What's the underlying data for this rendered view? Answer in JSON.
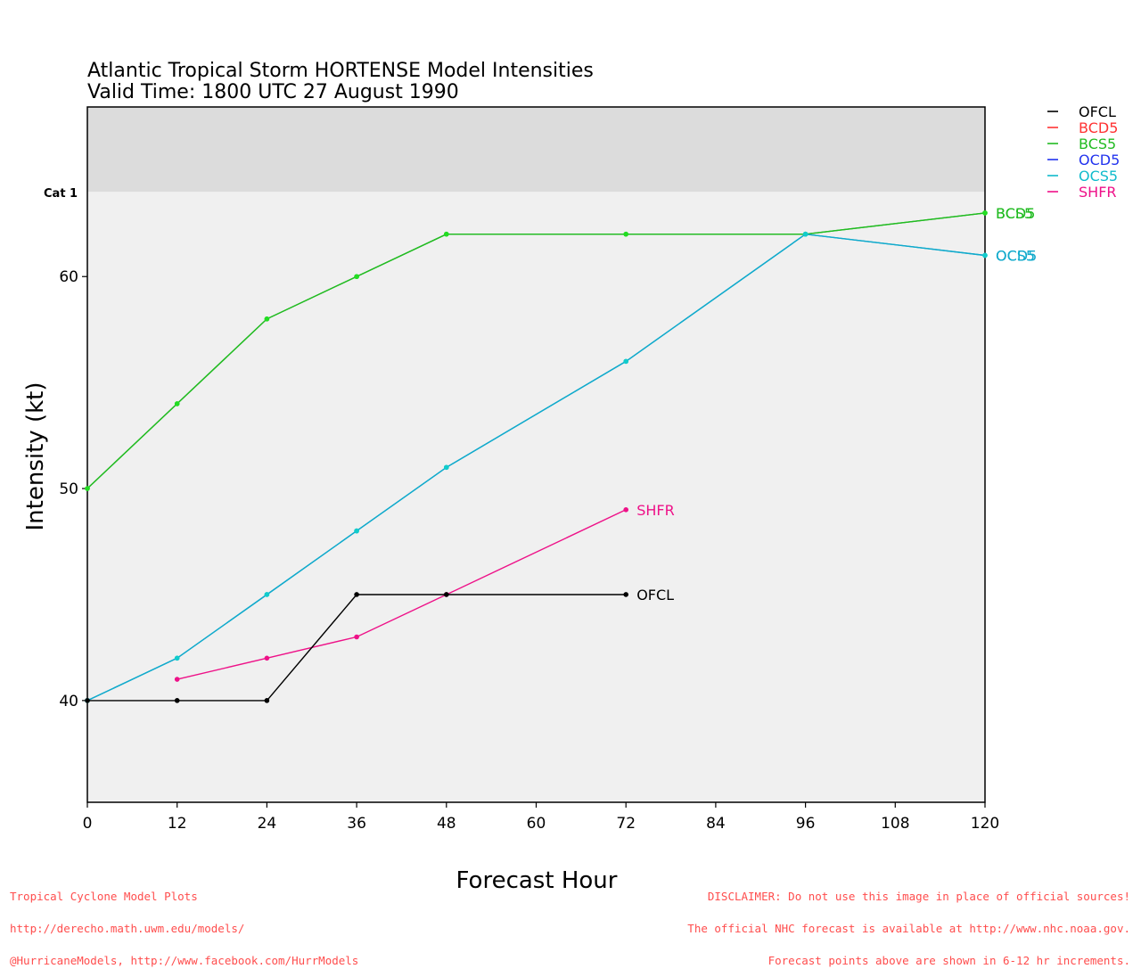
{
  "chart_data": {
    "type": "line",
    "title": "Atlantic Tropical Storm HORTENSE Model Intensities",
    "subtitle": "Valid Time: 1800 UTC 27 August 1990",
    "xlabel": "Forecast Hour",
    "ylabel": "Intensity (kt)",
    "xlim": [
      0,
      120
    ],
    "ylim": [
      35.2,
      68
    ],
    "x_ticks": [
      0,
      12,
      24,
      36,
      48,
      60,
      72,
      84,
      96,
      108,
      120
    ],
    "y_ticks": [
      40,
      50,
      60
    ],
    "thresholds": [
      {
        "label": "Cat 1",
        "value": 64,
        "shade_color": "#dcdcdc"
      }
    ],
    "plot_background": "#f0f0f0",
    "legend_position": "top-right-outside",
    "legend": [
      {
        "name": "OFCL",
        "color": "#000000"
      },
      {
        "name": "BCD5",
        "color": "#ff3333"
      },
      {
        "name": "BCS5",
        "color": "#22bb22"
      },
      {
        "name": "OCD5",
        "color": "#2233ee"
      },
      {
        "name": "OCS5",
        "color": "#11bbcc"
      },
      {
        "name": "SHFR",
        "color": "#ee1188"
      }
    ],
    "series": [
      {
        "name": "BCS5",
        "color": "#22bb22",
        "point_color": "#22dd22",
        "x": [
          0,
          12,
          24,
          36,
          48,
          72,
          96,
          120
        ],
        "y": [
          50,
          54,
          58,
          60,
          62,
          62,
          62,
          63
        ]
      },
      {
        "name": "BCD5",
        "color": "#22bb22",
        "point_color": "#22dd22",
        "x": [
          0,
          12,
          24,
          36,
          48,
          72,
          96,
          120
        ],
        "y": [
          50,
          54,
          58,
          60,
          62,
          62,
          62,
          63
        ]
      },
      {
        "name": "OCD5",
        "color": "#11aacc",
        "point_color": "#11cccc",
        "x": [
          0,
          12,
          24,
          36,
          48,
          72,
          96,
          120
        ],
        "y": [
          40,
          42,
          45,
          48,
          51,
          56,
          62,
          61
        ]
      },
      {
        "name": "OCS5",
        "color": "#11aacc",
        "point_color": "#11cccc",
        "x": [
          0,
          12,
          24,
          36,
          48,
          72,
          96,
          120
        ],
        "y": [
          40,
          42,
          45,
          48,
          51,
          56,
          62,
          61
        ]
      },
      {
        "name": "SHFR",
        "color": "#ee1188",
        "point_color": "#ee1188",
        "x": [
          12,
          24,
          36,
          48,
          72
        ],
        "y": [
          41,
          42,
          43,
          45,
          49
        ]
      },
      {
        "name": "OFCL",
        "color": "#000000",
        "point_color": "#000000",
        "x": [
          0,
          12,
          24,
          36,
          48,
          72
        ],
        "y": [
          40,
          40,
          40,
          45,
          45,
          45
        ]
      }
    ],
    "end_labels": [
      {
        "text": "BCD5",
        "color": "#22bb22",
        "x": 120,
        "y": 63
      },
      {
        "text": "BCS5",
        "color": "#22bb22",
        "x": 120,
        "y": 63
      },
      {
        "text": "OCD5",
        "color": "#11aacc",
        "x": 120,
        "y": 61
      },
      {
        "text": "OCS5",
        "color": "#11aacc",
        "x": 120,
        "y": 61
      },
      {
        "text": "SHFR",
        "color": "#ee1188",
        "x": 72,
        "y": 49
      },
      {
        "text": "OFCL",
        "color": "#000000",
        "x": 72,
        "y": 45
      }
    ]
  },
  "footer": {
    "left": [
      "Tropical Cyclone Model Plots",
      "http://derecho.math.uwm.edu/models/",
      "@HurricaneModels, http://www.facebook.com/HurrModels"
    ],
    "right": [
      "DISCLAIMER: Do not use this image in place of official sources!",
      "The official NHC forecast is available at http://www.nhc.noaa.gov.",
      "Forecast points above are shown in 6-12 hr increments."
    ]
  }
}
